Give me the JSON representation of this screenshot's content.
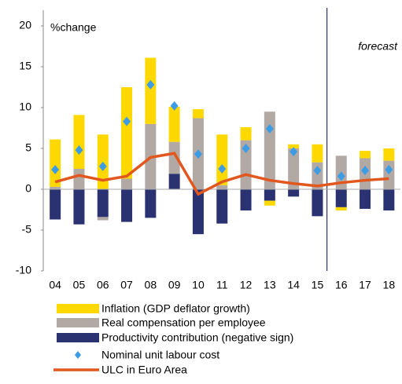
{
  "chart_data": {
    "type": "bar",
    "y_label": "%change",
    "annotation": "forecast",
    "categories": [
      "04",
      "05",
      "06",
      "07",
      "08",
      "09",
      "10",
      "11",
      "12",
      "13",
      "14",
      "15",
      "16",
      "17",
      "18"
    ],
    "ylim": [
      -10,
      20
    ],
    "yticks": [
      -10,
      -5,
      0,
      5,
      10,
      15,
      20
    ],
    "series": [
      {
        "name": "Inflation (GDP deflator growth)",
        "type": "bar",
        "color": "#FFD800",
        "values": [
          5.8,
          6.6,
          6.7,
          11.2,
          8.1,
          4.3,
          1.1,
          6.2,
          1.6,
          -0.6,
          0.5,
          2.2,
          -0.4,
          0.9,
          1.5
        ]
      },
      {
        "name": "Real compensation per employee",
        "type": "bar",
        "color": "#B3A9A4",
        "values": [
          0.3,
          2.5,
          -0.4,
          1.3,
          8.0,
          3.9,
          8.7,
          0.5,
          6.0,
          9.5,
          5.0,
          3.3,
          4.1,
          3.8,
          3.5
        ]
      },
      {
        "name": "Productivity contribution (negative sign)",
        "type": "bar",
        "color": "#2B3272",
        "values": [
          -3.7,
          -4.3,
          -3.4,
          -4.0,
          -3.5,
          1.9,
          -5.5,
          -4.2,
          -2.6,
          -1.4,
          -0.9,
          -3.3,
          -2.2,
          -2.4,
          -2.6
        ]
      },
      {
        "name": "Nominal unit labour cost",
        "type": "scatter",
        "color": "#3D9CE6",
        "values": [
          2.4,
          4.8,
          2.8,
          8.3,
          12.8,
          10.2,
          4.3,
          2.5,
          5.0,
          7.4,
          4.6,
          2.3,
          1.6,
          2.3,
          2.4
        ]
      },
      {
        "name": "ULC in Euro Area",
        "type": "line",
        "color": "#E2571D",
        "values": [
          0.9,
          1.7,
          1.1,
          1.6,
          3.9,
          4.4,
          -0.6,
          0.9,
          1.8,
          1.1,
          0.7,
          0.4,
          0.8,
          1.1,
          1.3
        ]
      }
    ]
  }
}
